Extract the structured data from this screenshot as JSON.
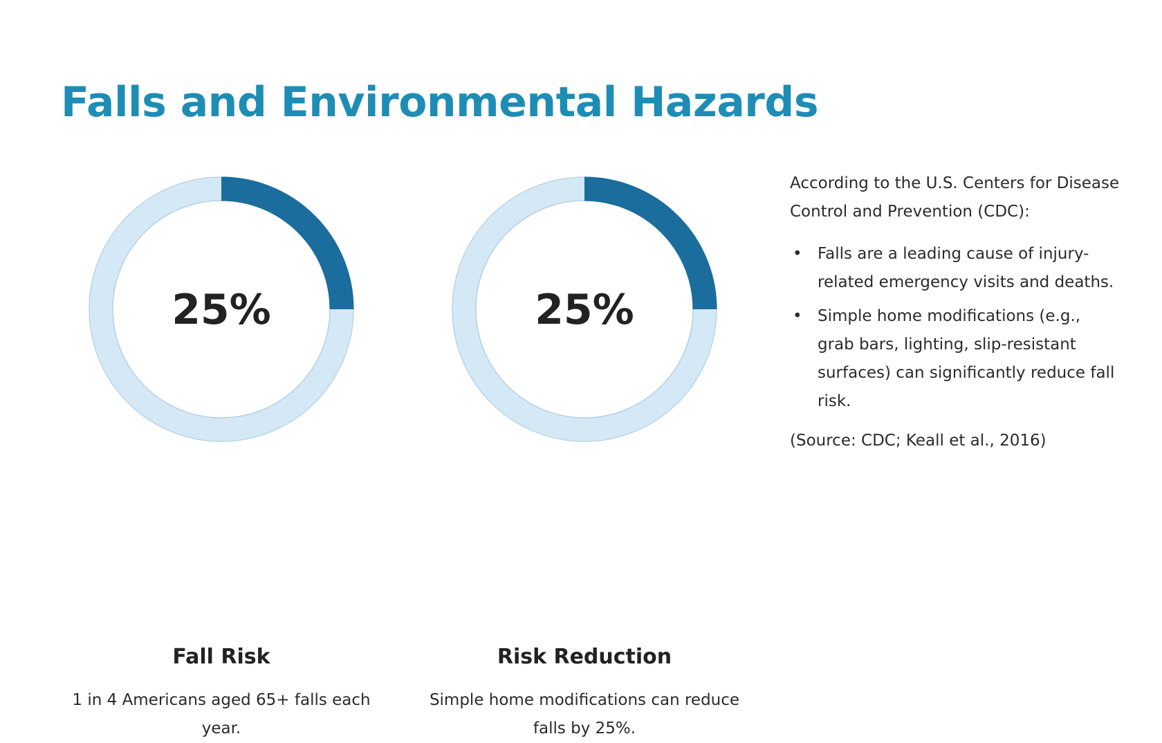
{
  "title": "Falls and Environmental Hazards",
  "colors": {
    "title": "#1e8db5",
    "donut_fill": "#1a6d9c",
    "donut_track": "#d4e8f6",
    "donut_track_border": "#b4d0e4",
    "text": "#2b2b2b"
  },
  "stats": [
    {
      "value_label": "25%",
      "fraction": 0.25,
      "label": "Fall Risk",
      "description": "1 in 4 Americans aged 65+ falls each year."
    },
    {
      "value_label": "25%",
      "fraction": 0.25,
      "label": "Risk Reduction",
      "description": "Simple home modifications can reduce falls by 25%."
    }
  ],
  "side": {
    "intro": "According to the U.S. Centers for Disease Control and Prevention (CDC):",
    "bullet_symbol": "•",
    "bullets": [
      "Falls are a leading cause of injury-related emergency visits and deaths.",
      "Simple home modifications (e.g., grab bars, lighting, slip-resistant surfaces) can significantly reduce fall risk."
    ],
    "source": "(Source: CDC; Keall et al., 2016)"
  }
}
